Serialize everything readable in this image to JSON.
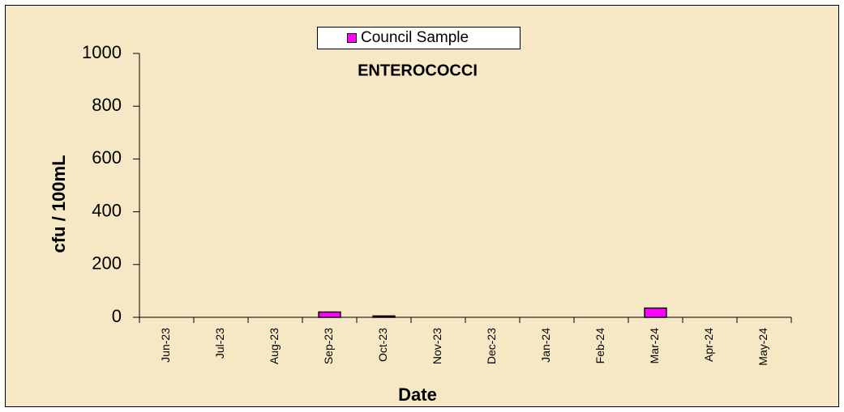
{
  "chart_data": {
    "type": "bar",
    "title": "ENTEROCOCCI",
    "x_label": "Date",
    "y_label": "cfu / 100mL",
    "categories": [
      "Jun-23",
      "Jul-23",
      "Aug-23",
      "Sep-23",
      "Oct-23",
      "Nov-23",
      "Dec-23",
      "Jan-24",
      "Feb-24",
      "Mar-24",
      "Apr-24",
      "May-24"
    ],
    "series": [
      {
        "name": "Council Sample",
        "color": "#ff00ff",
        "values": [
          null,
          null,
          null,
          20,
          5,
          null,
          null,
          null,
          null,
          35,
          null,
          null
        ]
      }
    ],
    "ylim": [
      0,
      1000
    ],
    "yticks": [
      0,
      200,
      400,
      600,
      800,
      1000
    ],
    "grid": false,
    "legend": "top"
  }
}
